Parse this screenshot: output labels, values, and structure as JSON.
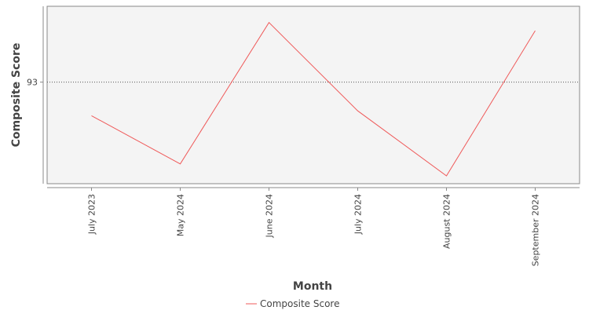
{
  "chart_data": {
    "type": "line",
    "categories": [
      "July 2023",
      "May 2024",
      "June 2024",
      "July 2024",
      "August 2024",
      "September 2024"
    ],
    "series": [
      {
        "name": "Composite Score",
        "values": [
          91.76,
          89.98,
          95.2,
          91.94,
          89.54,
          94.9
        ],
        "color": "#ef5a5a"
      }
    ],
    "xlabel": "Month",
    "ylabel": "Composite Score",
    "y_ticks": [
      93
    ],
    "reference_line": {
      "value": 93,
      "style": "dotted"
    },
    "ylim": [
      89.25,
      95.8
    ],
    "grid": false,
    "legend_position": "bottom-center",
    "plot_background": "#f4f4f4"
  }
}
